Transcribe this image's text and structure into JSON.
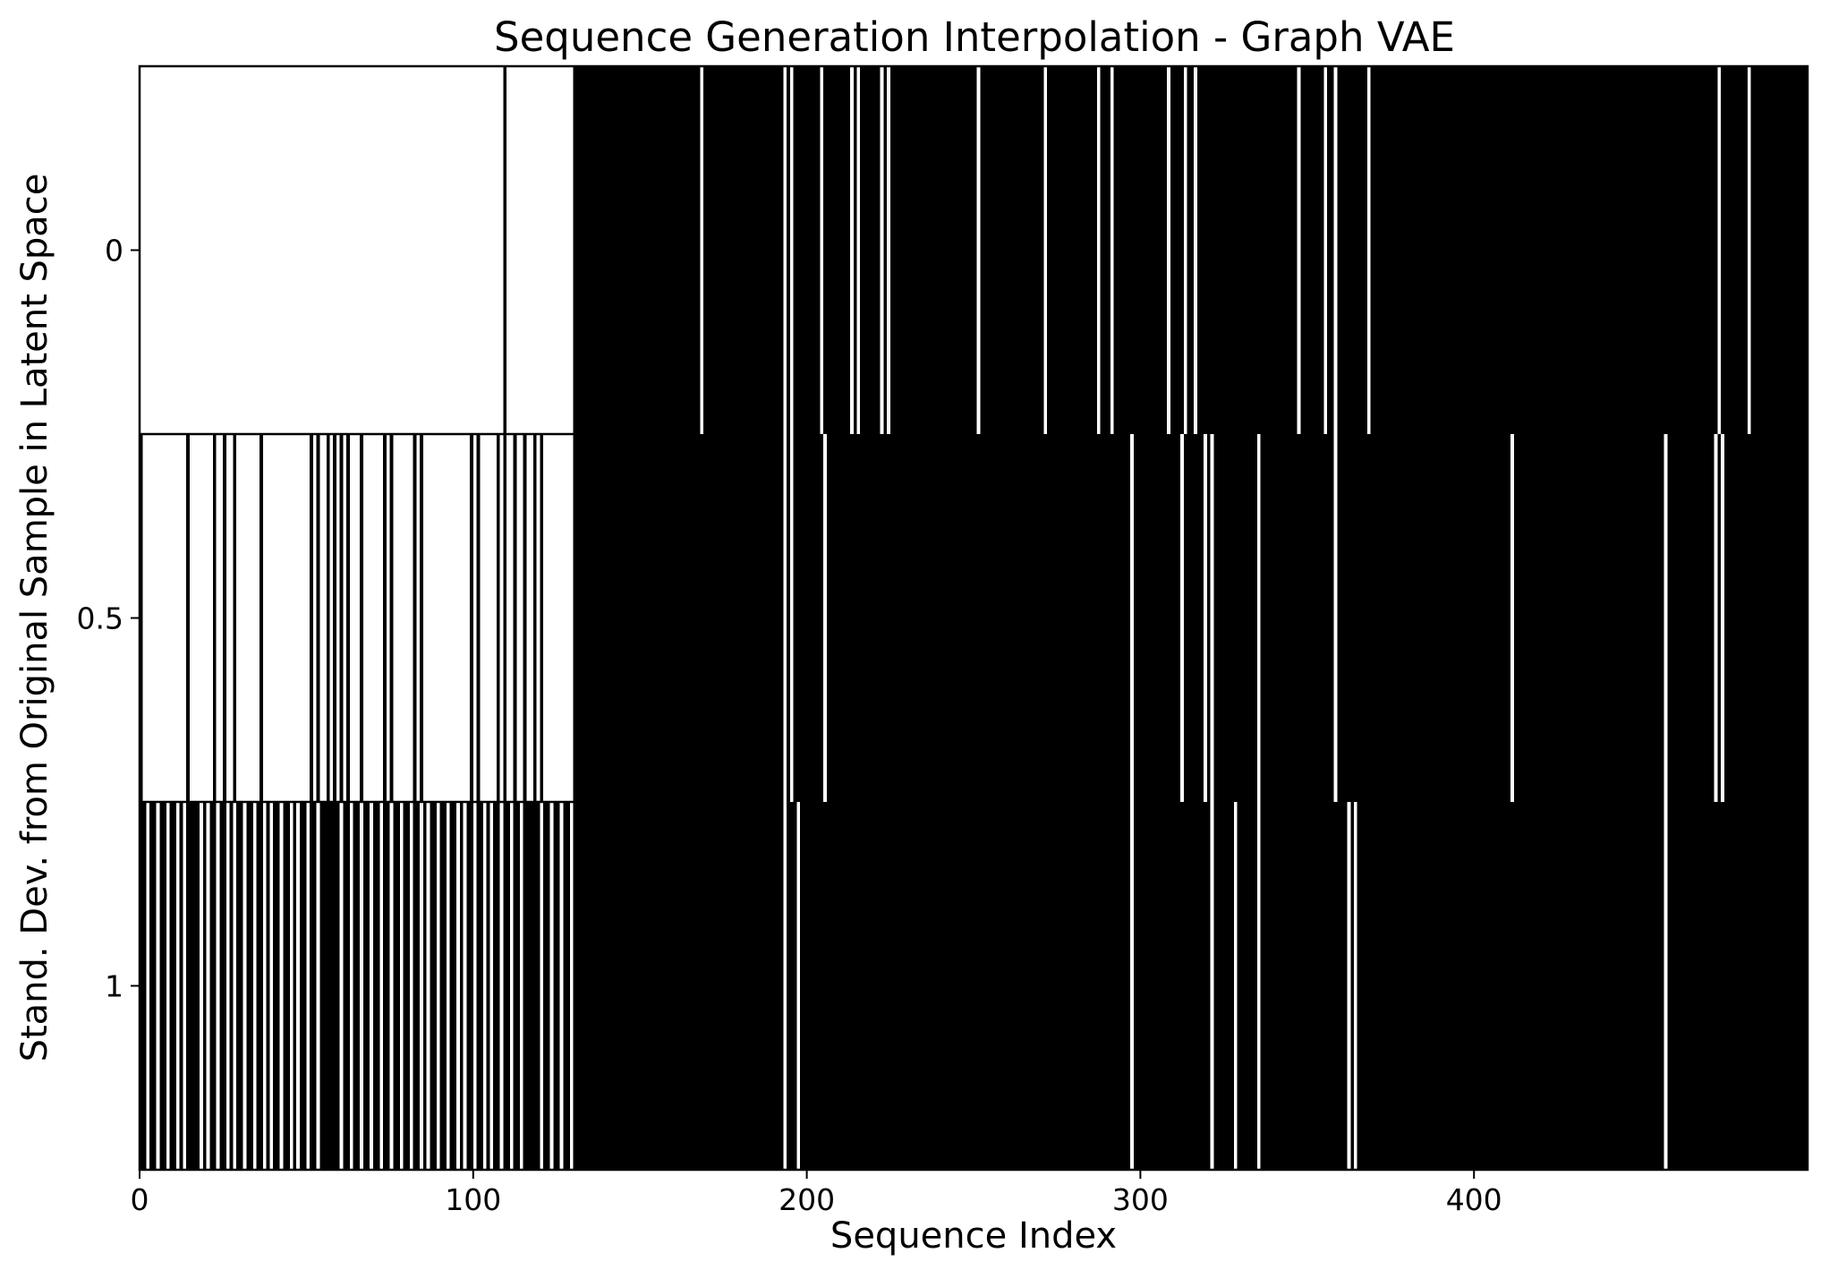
{
  "chart_data": {
    "type": "heatmap",
    "colormap": "binary",
    "title": "Sequence Generation Interpolation - Graph VAE",
    "xlabel": "Sequence Index",
    "ylabel": "Stand. Dev. from Original Sample in Latent Space",
    "xlim": [
      0,
      500
    ],
    "x_ticks": [
      0,
      100,
      200,
      300,
      400
    ],
    "x_tick_labels": [
      "0",
      "100",
      "200",
      "300",
      "400"
    ],
    "y_ticks": [
      0,
      0.5,
      1
    ],
    "y_tick_labels": [
      "0",
      "0.5",
      "1"
    ],
    "colors": {
      "on": "#000000",
      "off": "#ffffff"
    },
    "rows": [
      {
        "std_dev": 0,
        "dark_start": 130,
        "prefix_dark": [
          109
        ],
        "light_indices": [
          168,
          193,
          195,
          204,
          213,
          215,
          222,
          224,
          251,
          271,
          287,
          291,
          308,
          313,
          316,
          347,
          355,
          358,
          368,
          473,
          482
        ]
      },
      {
        "std_dev": 0.5,
        "dark_start": 130,
        "prefix_dark": [
          0,
          14,
          22,
          25,
          28,
          36,
          51,
          53,
          56,
          58,
          60,
          62,
          66,
          73,
          75,
          82,
          84,
          99,
          101,
          107,
          109,
          112,
          115,
          118,
          120
        ],
        "light_indices": [
          193,
          195,
          205,
          297,
          312,
          319,
          321,
          335,
          358,
          411,
          457,
          472,
          474
        ]
      },
      {
        "std_dev": 1,
        "dark_start": 130,
        "prefix_dark": [
          0,
          1,
          3,
          4,
          6,
          7,
          9,
          10,
          12,
          14,
          15,
          16,
          17,
          19,
          21,
          22,
          24,
          25,
          27,
          29,
          30,
          32,
          33,
          35,
          36,
          38,
          40,
          41,
          43,
          44,
          46,
          48,
          49,
          51,
          52,
          54,
          55,
          56,
          57,
          58,
          59,
          61,
          62,
          64,
          65,
          67,
          68,
          70,
          71,
          73,
          74,
          76,
          77,
          79,
          80,
          82,
          83,
          85,
          87,
          88,
          90,
          91,
          93,
          94,
          96,
          98,
          99,
          101,
          102,
          104,
          106,
          107,
          109,
          110,
          112,
          113,
          115,
          116,
          117,
          118,
          119,
          121,
          122,
          124,
          125,
          127,
          128
        ],
        "light_indices": [
          193,
          197,
          297,
          321,
          328,
          335,
          362,
          364,
          457
        ]
      }
    ]
  }
}
